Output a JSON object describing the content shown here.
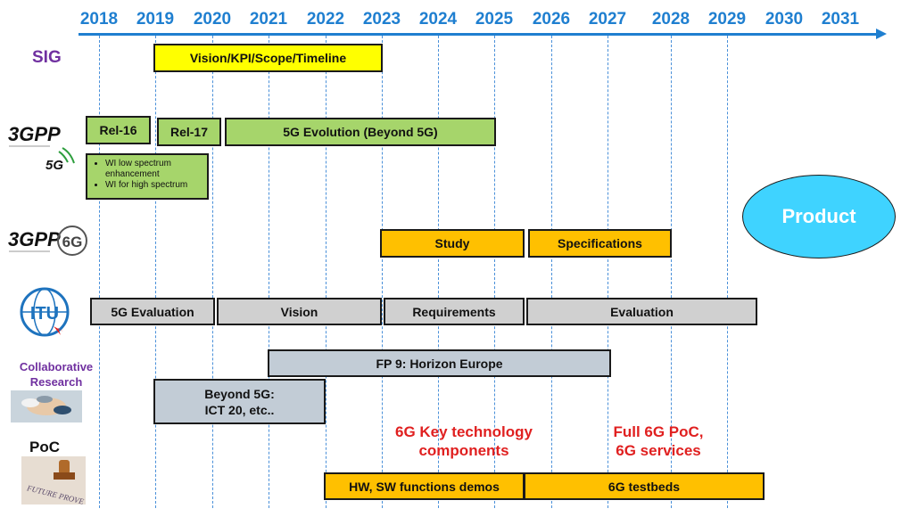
{
  "timeline": {
    "years": [
      "2018",
      "2019",
      "2020",
      "2021",
      "2022",
      "2023",
      "2024",
      "2025",
      "2026",
      "2027",
      "2028",
      "2029",
      "2030",
      "2031"
    ]
  },
  "rows": {
    "sig": {
      "label": "SIG"
    },
    "collab": {
      "label_line1": "Collaborative",
      "label_line2": "Research"
    },
    "poc": {
      "label": "PoC"
    }
  },
  "bars": {
    "sig_vision": "Vision/KPI/Scope/Timeline",
    "rel16": "Rel-16",
    "rel17": "Rel-17",
    "evolution": "5G Evolution (Beyond 5G)",
    "study": "Study",
    "specifications": "Specifications",
    "itu_5g_eval": "5G Evaluation",
    "itu_vision": "Vision",
    "itu_requirements": "Requirements",
    "itu_evaluation": "Evaluation",
    "fp9": "FP 9: Horizon Europe",
    "beyond5g_line1": "Beyond 5G:",
    "beyond5g_line2": "ICT 20, etc..",
    "hw_sw": "HW, SW functions demos",
    "testbeds": "6G testbeds"
  },
  "bullets": [
    "WI low spectrum enhancement",
    "WI for high spectrum"
  ],
  "notes": {
    "key_tech_line1": "6G Key technology",
    "key_tech_line2": "components",
    "full_poc_line1": "Full 6G PoC,",
    "full_poc_line2": "6G services"
  },
  "product": "Product",
  "logos": {
    "threegpp_a": "3GPP",
    "fiveg": "5G",
    "threegpp_b": "3GPP",
    "sixg": "6G",
    "itu": "ITU",
    "stamp": "FUTURE PROVE"
  },
  "colors": {
    "axis": "#1f7fd0",
    "yellow": "#ffff00",
    "green": "#a6d56b",
    "orange": "#ffc000",
    "gray": "#d0d0d0",
    "bluegray": "#c2ccd6",
    "red_text": "#e02020",
    "product": "#3fd3ff",
    "label_purple": "#7030a0"
  }
}
